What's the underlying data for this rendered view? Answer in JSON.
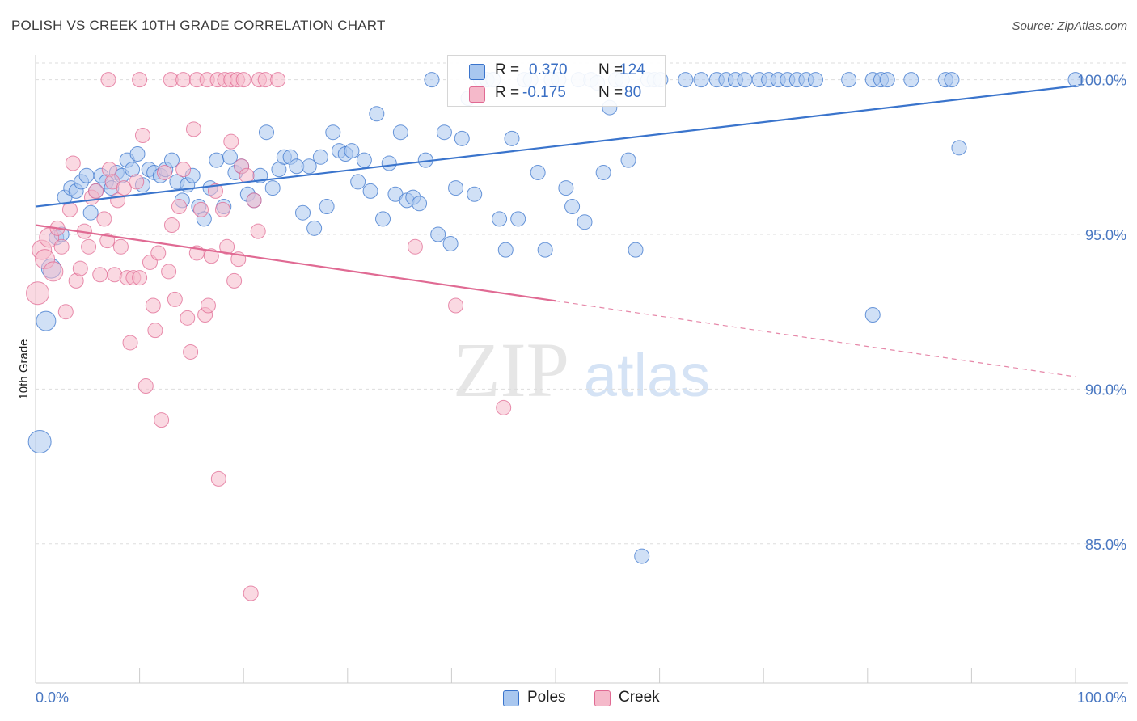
{
  "header": {
    "title": "POLISH VS CREEK 10TH GRADE CORRELATION CHART",
    "source": "Source: ZipAtlas.com"
  },
  "watermark": {
    "zip": "ZIP",
    "atlas": "atlas"
  },
  "legend": {
    "rows": [
      {
        "r_label": "R =",
        "r_value": "0.370",
        "n_label": "N =",
        "n_value": "124"
      },
      {
        "r_label": "R =",
        "r_value": "-0.175",
        "n_label": "N =",
        "n_value": "80"
      }
    ]
  },
  "bottom_legend": [
    {
      "name": "Poles",
      "color": "#a9c7ef"
    },
    {
      "name": "Creek",
      "color": "#f5b9ca"
    }
  ],
  "chart_data": {
    "type": "scatter",
    "title": "POLISH VS CREEK 10TH GRADE CORRELATION CHART",
    "xlabel": "",
    "ylabel": "10th Grade",
    "xlim": [
      0,
      100
    ],
    "ylim": [
      80.5,
      100.8
    ],
    "x_tick_labels": [
      "0.0%",
      "100.0%"
    ],
    "y_ticks": [
      85,
      90,
      95,
      100
    ],
    "y_tick_labels": [
      "85.0%",
      "90.0%",
      "95.0%",
      "100.0%"
    ],
    "grid": true,
    "legend_position": "top-center",
    "colors": {
      "poles": "#3a74cc",
      "poles_fill": "#a9c7ef",
      "creek": "#e06a93",
      "creek_fill": "#f5b9ca"
    },
    "series": [
      {
        "name": "Poles",
        "r": 0.37,
        "n": 124,
        "trend": {
          "x": [
            0,
            100
          ],
          "y": [
            95.9,
            99.8
          ],
          "style": "solid"
        },
        "points": [
          [
            0.4,
            88.3
          ],
          [
            1.0,
            92.2
          ],
          [
            1.5,
            93.9
          ],
          [
            2.0,
            94.9
          ],
          [
            2.5,
            95.0
          ],
          [
            2.8,
            96.2
          ],
          [
            3.4,
            96.5
          ],
          [
            3.9,
            96.4
          ],
          [
            4.4,
            96.7
          ],
          [
            4.9,
            96.9
          ],
          [
            5.3,
            95.7
          ],
          [
            5.8,
            96.4
          ],
          [
            6.3,
            96.9
          ],
          [
            6.8,
            96.7
          ],
          [
            7.3,
            96.5
          ],
          [
            7.8,
            97.0
          ],
          [
            8.3,
            96.9
          ],
          [
            8.8,
            97.4
          ],
          [
            9.3,
            97.1
          ],
          [
            9.8,
            97.6
          ],
          [
            10.3,
            96.6
          ],
          [
            10.9,
            97.1
          ],
          [
            11.4,
            97.0
          ],
          [
            12.0,
            96.9
          ],
          [
            12.5,
            97.1
          ],
          [
            13.1,
            97.4
          ],
          [
            13.6,
            96.7
          ],
          [
            14.1,
            96.1
          ],
          [
            14.6,
            96.6
          ],
          [
            15.1,
            96.9
          ],
          [
            15.7,
            95.9
          ],
          [
            16.2,
            95.5
          ],
          [
            16.8,
            96.5
          ],
          [
            17.4,
            97.4
          ],
          [
            18.1,
            95.9
          ],
          [
            18.7,
            97.5
          ],
          [
            19.2,
            97.0
          ],
          [
            19.8,
            97.2
          ],
          [
            20.4,
            96.3
          ],
          [
            21.0,
            96.1
          ],
          [
            21.6,
            96.9
          ],
          [
            22.2,
            98.3
          ],
          [
            22.8,
            96.5
          ],
          [
            23.4,
            97.1
          ],
          [
            23.9,
            97.5
          ],
          [
            24.5,
            97.5
          ],
          [
            25.1,
            97.2
          ],
          [
            25.7,
            95.7
          ],
          [
            26.3,
            97.2
          ],
          [
            26.8,
            95.2
          ],
          [
            27.4,
            97.5
          ],
          [
            28.0,
            95.9
          ],
          [
            28.6,
            98.3
          ],
          [
            29.2,
            97.7
          ],
          [
            29.8,
            97.6
          ],
          [
            30.4,
            97.7
          ],
          [
            31.0,
            96.7
          ],
          [
            31.6,
            97.4
          ],
          [
            32.2,
            96.4
          ],
          [
            32.8,
            98.9
          ],
          [
            33.4,
            95.5
          ],
          [
            34.0,
            97.3
          ],
          [
            34.6,
            96.3
          ],
          [
            35.1,
            98.3
          ],
          [
            35.7,
            96.1
          ],
          [
            36.3,
            96.2
          ],
          [
            36.9,
            96.0
          ],
          [
            37.5,
            97.4
          ],
          [
            38.1,
            100.0
          ],
          [
            38.7,
            95.0
          ],
          [
            39.3,
            98.3
          ],
          [
            39.9,
            94.7
          ],
          [
            40.4,
            96.5
          ],
          [
            41.0,
            98.1
          ],
          [
            41.6,
            99.4
          ],
          [
            42.2,
            96.3
          ],
          [
            42.8,
            100.0
          ],
          [
            43.4,
            100.0
          ],
          [
            44.0,
            100.0
          ],
          [
            44.6,
            95.5
          ],
          [
            45.2,
            94.5
          ],
          [
            45.8,
            98.1
          ],
          [
            46.4,
            95.5
          ],
          [
            47.0,
            100.0
          ],
          [
            47.6,
            100.0
          ],
          [
            48.3,
            97.0
          ],
          [
            49.0,
            94.5
          ],
          [
            49.6,
            100.0
          ],
          [
            50.3,
            100.0
          ],
          [
            51.0,
            96.5
          ],
          [
            51.6,
            95.9
          ],
          [
            52.2,
            100.0
          ],
          [
            52.8,
            95.4
          ],
          [
            53.4,
            100.0
          ],
          [
            54.0,
            99.9
          ],
          [
            54.6,
            97.0
          ],
          [
            55.2,
            99.1
          ],
          [
            55.8,
            100.0
          ],
          [
            56.4,
            100.0
          ],
          [
            57.0,
            97.4
          ],
          [
            57.7,
            94.5
          ],
          [
            58.3,
            84.6
          ],
          [
            58.9,
            100.0
          ],
          [
            59.5,
            100.0
          ],
          [
            60.1,
            100.0
          ],
          [
            62.5,
            100.0
          ],
          [
            64.0,
            100.0
          ],
          [
            65.5,
            100.0
          ],
          [
            66.4,
            100.0
          ],
          [
            67.3,
            100.0
          ],
          [
            68.2,
            100.0
          ],
          [
            69.6,
            100.0
          ],
          [
            70.5,
            100.0
          ],
          [
            71.4,
            100.0
          ],
          [
            72.3,
            100.0
          ],
          [
            73.2,
            100.0
          ],
          [
            74.1,
            100.0
          ],
          [
            75.0,
            100.0
          ],
          [
            78.2,
            100.0
          ],
          [
            80.5,
            100.0
          ],
          [
            81.3,
            100.0
          ],
          [
            81.9,
            100.0
          ],
          [
            84.2,
            100.0
          ],
          [
            80.5,
            92.4
          ],
          [
            87.5,
            100.0
          ],
          [
            88.1,
            100.0
          ],
          [
            88.8,
            97.8
          ],
          [
            100.0,
            100.0
          ]
        ]
      },
      {
        "name": "Creek",
        "r": -0.175,
        "n": 80,
        "trend": {
          "x": [
            0,
            100
          ],
          "y": [
            95.3,
            90.4
          ],
          "style": "solid-then-dashed",
          "solid_until_x": 50
        },
        "points": [
          [
            0.2,
            93.1
          ],
          [
            0.6,
            94.5
          ],
          [
            0.9,
            94.2
          ],
          [
            1.3,
            94.9
          ],
          [
            1.7,
            93.8
          ],
          [
            2.1,
            95.2
          ],
          [
            2.5,
            94.6
          ],
          [
            2.9,
            92.5
          ],
          [
            3.3,
            95.8
          ],
          [
            3.6,
            97.3
          ],
          [
            3.9,
            93.5
          ],
          [
            4.3,
            93.9
          ],
          [
            4.7,
            95.1
          ],
          [
            5.1,
            94.6
          ],
          [
            5.4,
            96.2
          ],
          [
            5.8,
            96.4
          ],
          [
            6.2,
            93.7
          ],
          [
            6.6,
            95.5
          ],
          [
            6.9,
            94.8
          ],
          [
            7.1,
            97.1
          ],
          [
            7.4,
            96.7
          ],
          [
            7.6,
            93.7
          ],
          [
            7.9,
            96.1
          ],
          [
            8.2,
            94.6
          ],
          [
            8.5,
            96.5
          ],
          [
            8.8,
            93.6
          ],
          [
            9.1,
            91.5
          ],
          [
            9.4,
            93.6
          ],
          [
            9.7,
            96.7
          ],
          [
            10.0,
            93.6
          ],
          [
            10.3,
            98.2
          ],
          [
            10.6,
            90.1
          ],
          [
            11.0,
            94.1
          ],
          [
            11.3,
            92.7
          ],
          [
            11.5,
            91.9
          ],
          [
            11.8,
            94.4
          ],
          [
            12.1,
            89.0
          ],
          [
            12.4,
            97.0
          ],
          [
            12.8,
            93.8
          ],
          [
            13.1,
            95.3
          ],
          [
            13.4,
            92.9
          ],
          [
            13.8,
            95.9
          ],
          [
            14.2,
            97.1
          ],
          [
            14.6,
            92.3
          ],
          [
            14.9,
            91.2
          ],
          [
            15.2,
            98.4
          ],
          [
            15.5,
            94.4
          ],
          [
            15.9,
            95.8
          ],
          [
            16.3,
            92.4
          ],
          [
            16.6,
            92.7
          ],
          [
            16.9,
            94.3
          ],
          [
            17.3,
            96.4
          ],
          [
            17.6,
            87.1
          ],
          [
            18.0,
            95.8
          ],
          [
            18.4,
            94.6
          ],
          [
            18.8,
            98.0
          ],
          [
            19.1,
            93.5
          ],
          [
            19.5,
            94.2
          ],
          [
            19.8,
            97.2
          ],
          [
            20.3,
            96.9
          ],
          [
            20.7,
            83.4
          ],
          [
            21.0,
            96.1
          ],
          [
            21.4,
            95.1
          ],
          [
            7.0,
            100.0
          ],
          [
            10.0,
            100.0
          ],
          [
            13.0,
            100.0
          ],
          [
            14.2,
            100.0
          ],
          [
            15.5,
            100.0
          ],
          [
            16.5,
            100.0
          ],
          [
            17.5,
            100.0
          ],
          [
            18.2,
            100.0
          ],
          [
            18.8,
            100.0
          ],
          [
            19.4,
            100.0
          ],
          [
            20.0,
            100.0
          ],
          [
            21.5,
            100.0
          ],
          [
            22.1,
            100.0
          ],
          [
            23.3,
            100.0
          ],
          [
            36.5,
            94.6
          ],
          [
            40.4,
            92.7
          ],
          [
            45.0,
            89.4
          ]
        ]
      }
    ]
  }
}
